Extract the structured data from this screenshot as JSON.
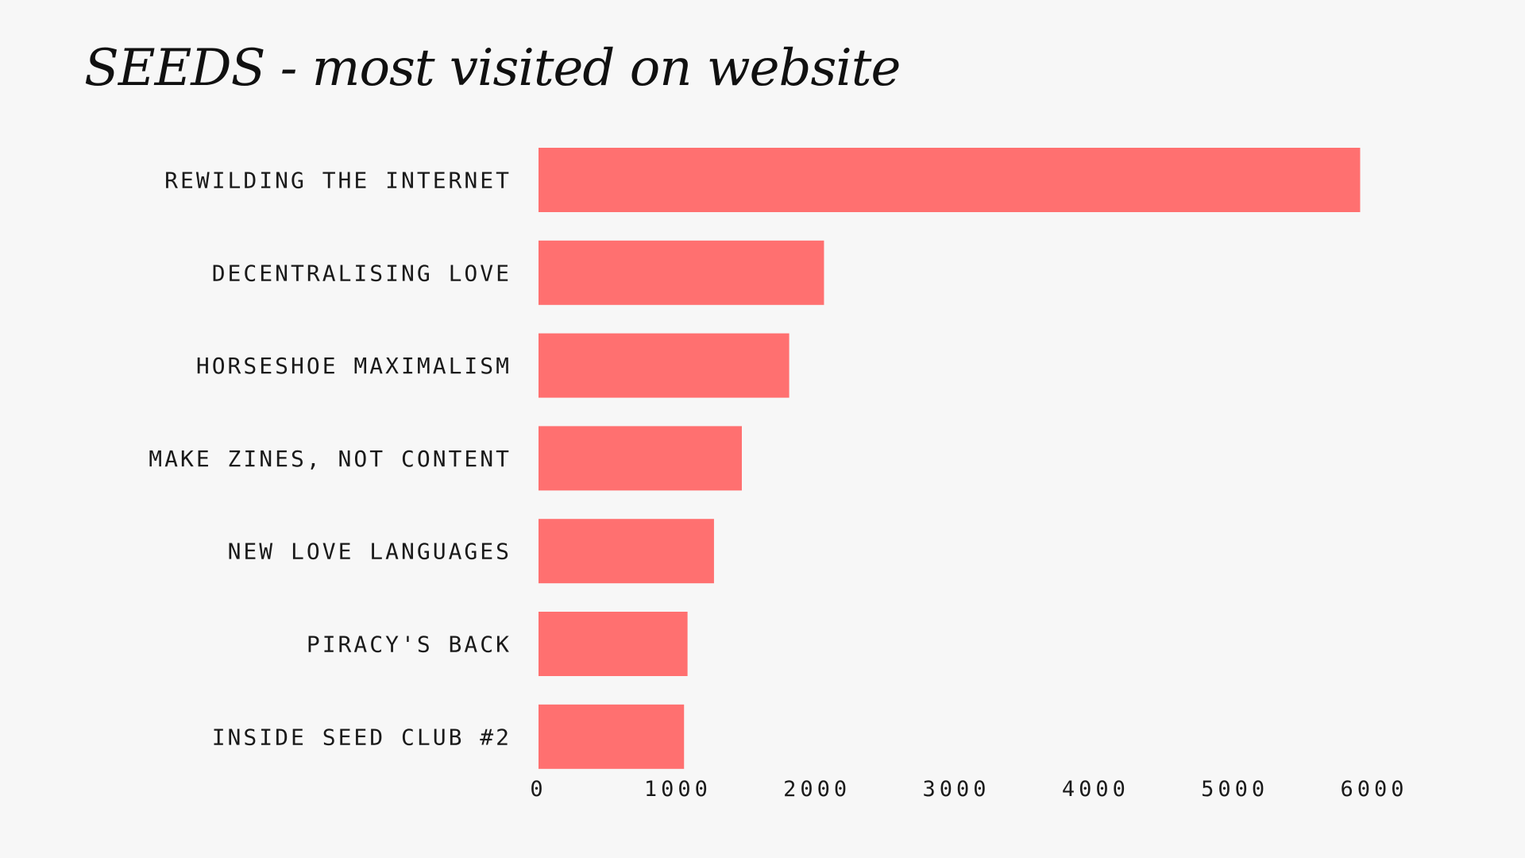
{
  "chart_data": {
    "type": "bar",
    "orientation": "horizontal",
    "title": "SEEDS - most visited on website",
    "xlabel": "",
    "ylabel": "",
    "categories": [
      "REWILDING THE INTERNET",
      "DECENTRALISING LOVE",
      "HORSESHOE MAXIMALISM",
      "MAKE ZINES, NOT CONTENT",
      "NEW LOVE LANGUAGES",
      "PIRACY'S BACK",
      "INSIDE SEED CLUB #2"
    ],
    "values": [
      5900,
      2050,
      1800,
      1460,
      1260,
      1070,
      1045
    ],
    "xlim": [
      0,
      6000
    ],
    "xticks": [
      "0",
      "1000",
      "2000",
      "3000",
      "4000",
      "5000",
      "6000"
    ],
    "grid": false,
    "legend": "none",
    "bar_color": "#ff7070",
    "background_color": "#f7f7f7",
    "text_color": "#1a1a1a"
  }
}
